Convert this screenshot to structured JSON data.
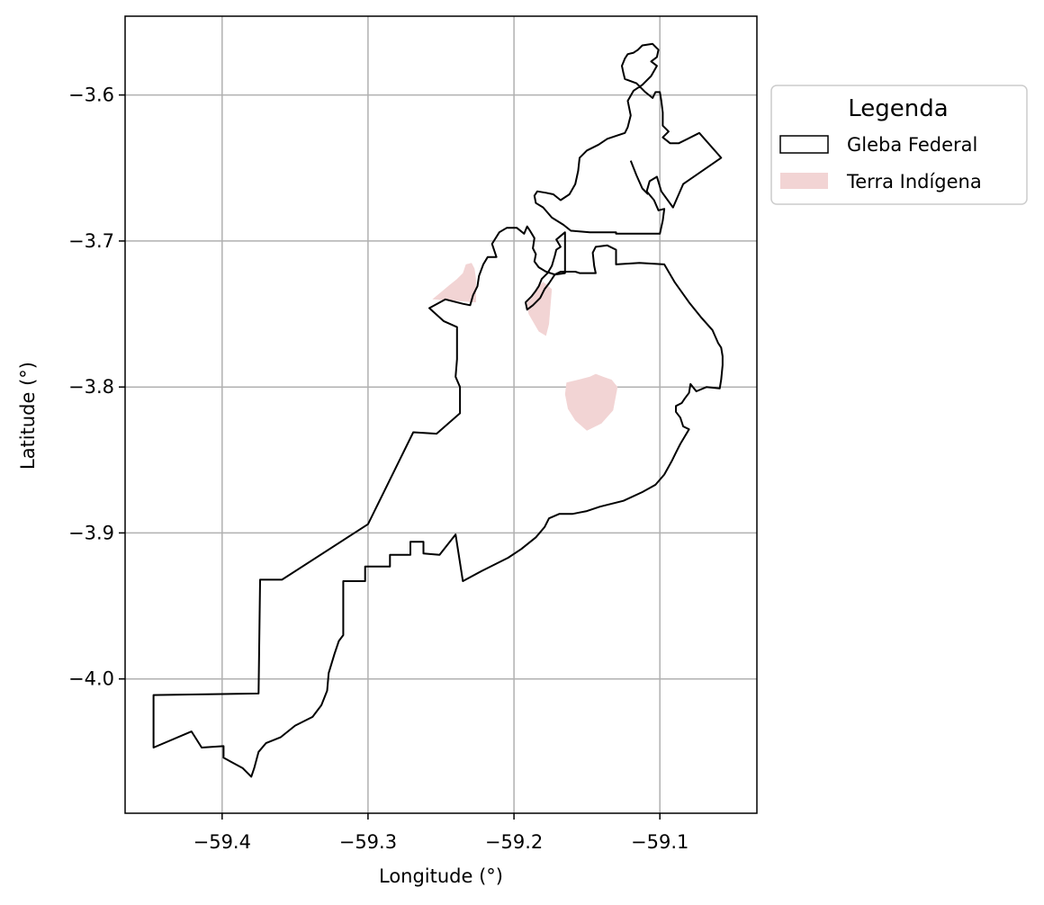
{
  "chart_data": {
    "type": "map",
    "xlabel": "Longitude (°)",
    "ylabel": "Latitude (°)",
    "xlim": [
      -59.4665,
      -59.0335
    ],
    "ylim": [
      -4.092,
      -3.546
    ],
    "xticks": [
      {
        "value": -59.4,
        "label": "−59.4"
      },
      {
        "value": -59.3,
        "label": "−59.3"
      },
      {
        "value": -59.2,
        "label": "−59.2"
      },
      {
        "value": -59.1,
        "label": "−59.1"
      }
    ],
    "yticks": [
      {
        "value": -3.6,
        "label": "−3.6"
      },
      {
        "value": -3.7,
        "label": "−3.7"
      },
      {
        "value": -3.8,
        "label": "−3.8"
      },
      {
        "value": -3.9,
        "label": "−3.9"
      },
      {
        "value": -4.0,
        "label": "−4.0"
      }
    ],
    "grid": true,
    "legend": {
      "title": "Legenda",
      "placement": "outside-upper-right",
      "entries": [
        {
          "label": "Gleba Federal",
          "style": "outline",
          "color": "#000000"
        },
        {
          "label": "Terra Indígena",
          "style": "fill",
          "color": "#f2d4d4"
        }
      ]
    },
    "series": [
      {
        "legend_index": 0,
        "kind": "outline",
        "polygons": [
          [
            [
              -59.447,
              -4.047
            ],
            [
              -59.421,
              -4.036
            ],
            [
              -59.414,
              -4.047
            ],
            [
              -59.399,
              -4.046
            ],
            [
              -59.399,
              -4.054
            ],
            [
              -59.386,
              -4.061
            ],
            [
              -59.38,
              -4.067
            ],
            [
              -59.378,
              -4.061
            ],
            [
              -59.375,
              -4.05
            ],
            [
              -59.37,
              -4.044
            ],
            [
              -59.36,
              -4.04
            ],
            [
              -59.35,
              -4.032
            ],
            [
              -59.338,
              -4.026
            ],
            [
              -59.332,
              -4.018
            ],
            [
              -59.328,
              -4.008
            ],
            [
              -59.327,
              -3.996
            ],
            [
              -59.323,
              -3.983
            ],
            [
              -59.32,
              -3.974
            ],
            [
              -59.317,
              -3.97
            ],
            [
              -59.317,
              -3.933
            ],
            [
              -59.302,
              -3.933
            ],
            [
              -59.302,
              -3.923
            ],
            [
              -59.285,
              -3.923
            ],
            [
              -59.285,
              -3.915
            ],
            [
              -59.271,
              -3.915
            ],
            [
              -59.271,
              -3.906
            ],
            [
              -59.262,
              -3.906
            ],
            [
              -59.262,
              -3.914
            ],
            [
              -59.251,
              -3.915
            ],
            [
              -59.24,
              -3.901
            ],
            [
              -59.235,
              -3.933
            ],
            [
              -59.222,
              -3.926
            ],
            [
              -59.204,
              -3.917
            ],
            [
              -59.195,
              -3.911
            ],
            [
              -59.185,
              -3.903
            ],
            [
              -59.179,
              -3.896
            ],
            [
              -59.176,
              -3.89
            ],
            [
              -59.169,
              -3.887
            ],
            [
              -59.16,
              -3.887
            ],
            [
              -59.155,
              -3.886
            ],
            [
              -59.15,
              -3.885
            ],
            [
              -59.141,
              -3.882
            ],
            [
              -59.125,
              -3.878
            ],
            [
              -59.112,
              -3.872
            ],
            [
              -59.103,
              -3.867
            ],
            [
              -59.097,
              -3.86
            ],
            [
              -59.092,
              -3.851
            ],
            [
              -59.089,
              -3.845
            ],
            [
              -59.086,
              -3.839
            ],
            [
              -59.08,
              -3.829
            ],
            [
              -59.084,
              -3.827
            ],
            [
              -59.086,
              -3.821
            ],
            [
              -59.089,
              -3.817
            ],
            [
              -59.089,
              -3.813
            ],
            [
              -59.085,
              -3.811
            ],
            [
              -59.083,
              -3.808
            ],
            [
              -59.08,
              -3.804
            ],
            [
              -59.079,
              -3.798
            ],
            [
              -59.075,
              -3.803
            ],
            [
              -59.068,
              -3.8
            ],
            [
              -59.059,
              -3.801
            ],
            [
              -59.058,
              -3.795
            ],
            [
              -59.057,
              -3.785
            ],
            [
              -59.057,
              -3.779
            ],
            [
              -59.058,
              -3.773
            ],
            [
              -59.06,
              -3.77
            ],
            [
              -59.064,
              -3.761
            ],
            [
              -59.072,
              -3.752
            ],
            [
              -59.08,
              -3.742
            ],
            [
              -59.09,
              -3.728
            ],
            [
              -59.097,
              -3.716
            ],
            [
              -59.114,
              -3.715
            ],
            [
              -59.13,
              -3.716
            ],
            [
              -59.13,
              -3.706
            ],
            [
              -59.136,
              -3.703
            ],
            [
              -59.144,
              -3.704
            ],
            [
              -59.146,
              -3.708
            ],
            [
              -59.145,
              -3.717
            ],
            [
              -59.144,
              -3.722
            ],
            [
              -59.155,
              -3.722
            ],
            [
              -59.158,
              -3.721
            ],
            [
              -59.168,
              -3.721
            ],
            [
              -59.172,
              -3.723
            ],
            [
              -59.178,
              -3.721
            ],
            [
              -59.183,
              -3.718
            ],
            [
              -59.186,
              -3.714
            ],
            [
              -59.185,
              -3.709
            ],
            [
              -59.187,
              -3.705
            ],
            [
              -59.186,
              -3.698
            ],
            [
              -59.189,
              -3.693
            ],
            [
              -59.191,
              -3.69
            ],
            [
              -59.193,
              -3.695
            ],
            [
              -59.198,
              -3.691
            ],
            [
              -59.205,
              -3.691
            ],
            [
              -59.21,
              -3.694
            ],
            [
              -59.215,
              -3.702
            ],
            [
              -59.212,
              -3.711
            ],
            [
              -59.218,
              -3.711
            ],
            [
              -59.221,
              -3.716
            ],
            [
              -59.224,
              -3.724
            ],
            [
              -59.225,
              -3.731
            ],
            [
              -59.228,
              -3.737
            ],
            [
              -59.23,
              -3.744
            ],
            [
              -59.235,
              -3.743
            ],
            [
              -59.247,
              -3.74
            ],
            [
              -59.258,
              -3.746
            ],
            [
              -59.248,
              -3.755
            ],
            [
              -59.239,
              -3.759
            ],
            [
              -59.239,
              -3.781
            ],
            [
              -59.24,
              -3.793
            ],
            [
              -59.237,
              -3.8
            ],
            [
              -59.237,
              -3.818
            ],
            [
              -59.253,
              -3.832
            ],
            [
              -59.269,
              -3.831
            ],
            [
              -59.3,
              -3.894
            ],
            [
              -59.359,
              -3.932
            ],
            [
              -59.374,
              -3.932
            ],
            [
              -59.375,
              -4.01
            ],
            [
              -59.447,
              -4.011
            ]
          ],
          [
            [
              -59.165,
              -3.694
            ],
            [
              -59.171,
              -3.699
            ],
            [
              -59.168,
              -3.704
            ],
            [
              -59.171,
              -3.706
            ],
            [
              -59.172,
              -3.71
            ],
            [
              -59.174,
              -3.717
            ],
            [
              -59.177,
              -3.722
            ],
            [
              -59.181,
              -3.726
            ],
            [
              -59.183,
              -3.731
            ],
            [
              -59.185,
              -3.734
            ],
            [
              -59.188,
              -3.738
            ],
            [
              -59.192,
              -3.742
            ],
            [
              -59.191,
              -3.747
            ],
            [
              -59.187,
              -3.744
            ],
            [
              -59.182,
              -3.739
            ],
            [
              -59.179,
              -3.733
            ],
            [
              -59.176,
              -3.729
            ],
            [
              -59.172,
              -3.723
            ],
            [
              -59.165,
              -3.722
            ]
          ],
          [
            [
              -59.13,
              -3.694
            ],
            [
              -59.148,
              -3.694
            ],
            [
              -59.161,
              -3.693
            ],
            [
              -59.166,
              -3.689
            ],
            [
              -59.174,
              -3.684
            ],
            [
              -59.18,
              -3.677
            ],
            [
              -59.185,
              -3.674
            ],
            [
              -59.186,
              -3.669
            ],
            [
              -59.184,
              -3.666
            ],
            [
              -59.178,
              -3.667
            ],
            [
              -59.173,
              -3.668
            ],
            [
              -59.168,
              -3.672
            ],
            [
              -59.162,
              -3.668
            ],
            [
              -59.158,
              -3.661
            ],
            [
              -59.156,
              -3.652
            ],
            [
              -59.155,
              -3.643
            ],
            [
              -59.15,
              -3.638
            ],
            [
              -59.142,
              -3.634
            ],
            [
              -59.136,
              -3.63
            ],
            [
              -59.13,
              -3.628
            ],
            [
              -59.124,
              -3.626
            ],
            [
              -59.122,
              -3.622
            ],
            [
              -59.12,
              -3.614
            ],
            [
              -59.122,
              -3.604
            ],
            [
              -59.118,
              -3.597
            ],
            [
              -59.112,
              -3.593
            ],
            [
              -59.106,
              -3.587
            ],
            [
              -59.102,
              -3.58
            ],
            [
              -59.106,
              -3.577
            ],
            [
              -59.102,
              -3.574
            ],
            [
              -59.101,
              -3.569
            ],
            [
              -59.105,
              -3.565
            ],
            [
              -59.112,
              -3.566
            ],
            [
              -59.115,
              -3.569
            ],
            [
              -59.118,
              -3.571
            ],
            [
              -59.122,
              -3.572
            ],
            [
              -59.124,
              -3.575
            ],
            [
              -59.126,
              -3.58
            ],
            [
              -59.125,
              -3.585
            ],
            [
              -59.124,
              -3.589
            ],
            [
              -59.116,
              -3.592
            ],
            [
              -59.11,
              -3.598
            ],
            [
              -59.105,
              -3.602
            ],
            [
              -59.103,
              -3.598
            ],
            [
              -59.1,
              -3.598
            ],
            [
              -59.099,
              -3.604
            ],
            [
              -59.098,
              -3.612
            ],
            [
              -59.098,
              -3.621
            ],
            [
              -59.094,
              -3.625
            ],
            [
              -59.098,
              -3.629
            ],
            [
              -59.093,
              -3.633
            ],
            [
              -59.087,
              -3.633
            ],
            [
              -59.073,
              -3.626
            ],
            [
              -59.058,
              -3.643
            ],
            [
              -59.084,
              -3.661
            ],
            [
              -59.091,
              -3.677
            ],
            [
              -59.099,
              -3.666
            ],
            [
              -59.102,
              -3.656
            ],
            [
              -59.107,
              -3.659
            ],
            [
              -59.109,
              -3.666
            ],
            [
              -59.104,
              -3.672
            ],
            [
              -59.101,
              -3.679
            ],
            [
              -59.097,
              -3.678
            ],
            [
              -59.098,
              -3.686
            ],
            [
              -59.1,
              -3.695
            ],
            [
              -59.13,
              -3.695
            ]
          ],
          [
            [
              -59.12,
              -3.645
            ],
            [
              -59.116,
              -3.655
            ],
            [
              -59.112,
              -3.664
            ],
            [
              -59.108,
              -3.668
            ]
          ]
        ]
      },
      {
        "legend_index": 1,
        "kind": "fill",
        "polygons": [
          [
            [
              -59.256,
              -3.74
            ],
            [
              -59.25,
              -3.735
            ],
            [
              -59.244,
              -3.73
            ],
            [
              -59.239,
              -3.726
            ],
            [
              -59.235,
              -3.722
            ],
            [
              -59.233,
              -3.716
            ],
            [
              -59.229,
              -3.715
            ],
            [
              -59.227,
              -3.719
            ],
            [
              -59.226,
              -3.726
            ],
            [
              -59.226,
              -3.742
            ],
            [
              -59.24,
              -3.741
            ]
          ],
          [
            [
              -59.191,
              -3.742
            ],
            [
              -59.187,
              -3.738
            ],
            [
              -59.184,
              -3.732
            ],
            [
              -59.18,
              -3.728
            ],
            [
              -59.174,
              -3.733
            ],
            [
              -59.176,
              -3.757
            ],
            [
              -59.178,
              -3.765
            ],
            [
              -59.183,
              -3.762
            ],
            [
              -59.19,
              -3.75
            ]
          ],
          [
            [
              -59.164,
              -3.797
            ],
            [
              -59.156,
              -3.795
            ],
            [
              -59.148,
              -3.793
            ],
            [
              -59.144,
              -3.791
            ],
            [
              -59.139,
              -3.793
            ],
            [
              -59.133,
              -3.795
            ],
            [
              -59.129,
              -3.8
            ],
            [
              -59.132,
              -3.816
            ],
            [
              -59.14,
              -3.825
            ],
            [
              -59.15,
              -3.83
            ],
            [
              -59.158,
              -3.823
            ],
            [
              -59.163,
              -3.815
            ],
            [
              -59.165,
              -3.805
            ]
          ]
        ]
      }
    ]
  }
}
